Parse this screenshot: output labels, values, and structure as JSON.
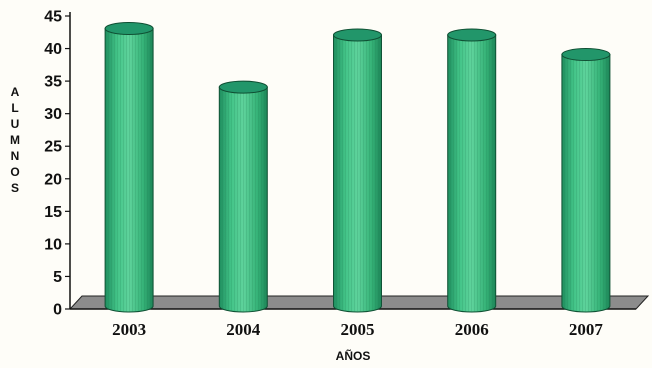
{
  "chart_data": {
    "type": "bar",
    "categories": [
      "2003",
      "2004",
      "2005",
      "2006",
      "2007"
    ],
    "series": [
      {
        "values": [
          44,
          35,
          43,
          43,
          40
        ]
      }
    ],
    "title": "",
    "xlabel": "AÑOS",
    "ylabel": "ALUMNOS",
    "ylim": [
      0,
      45
    ],
    "yticks": [
      0,
      5,
      10,
      15,
      20,
      25,
      30,
      35,
      40,
      45
    ],
    "grid": false,
    "legend": "none",
    "bar_shape": "cylinder-3d",
    "colors": {
      "bar_body": "#3dbb7e",
      "bar_top": "#22966a",
      "floor": "#8c8c8c",
      "axis": "#111111",
      "background": "#fefdf8"
    }
  }
}
